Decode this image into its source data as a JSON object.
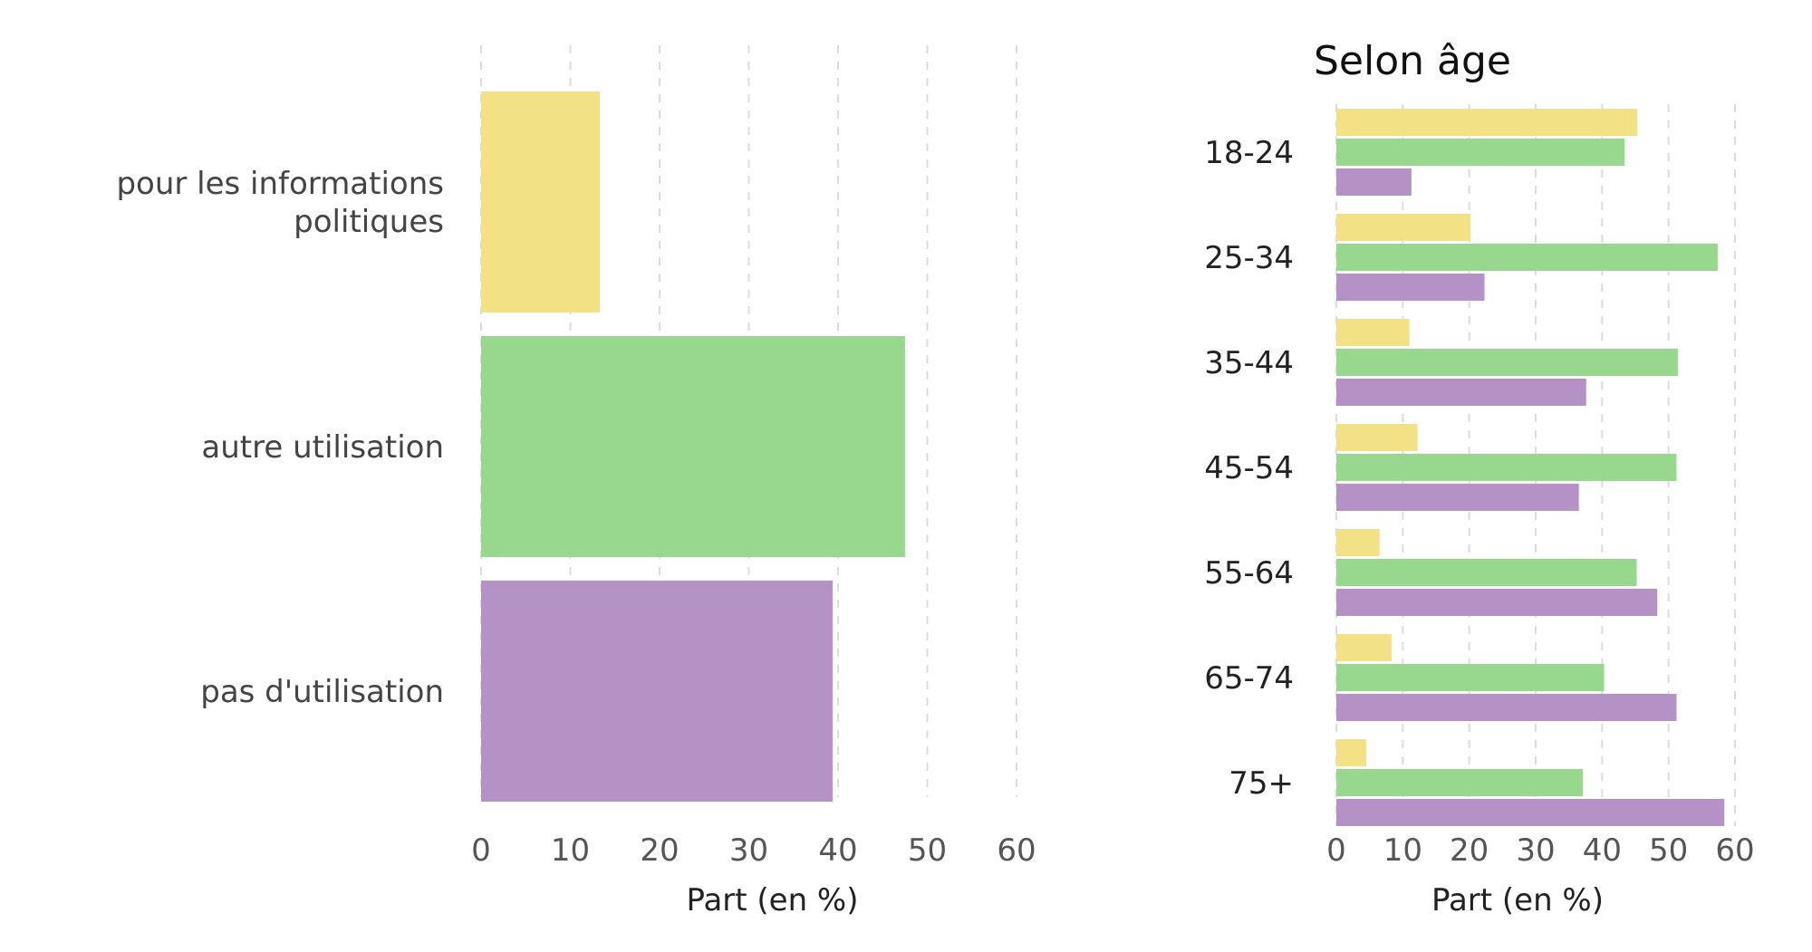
{
  "colors": {
    "pour les informations politiques": "#f2e185",
    "autre utilisation": "#98d78e",
    "pas d'utilisation": "#b592c5",
    "grid": "#dcdcdc"
  },
  "chart_data": [
    {
      "type": "bar",
      "orientation": "horizontal",
      "categories": [
        "pour les informations politiques",
        "autre utilisation",
        "pas d'utilisation"
      ],
      "category_label_lines": [
        [
          "pour les informations",
          "politiques"
        ],
        [
          "autre utilisation"
        ],
        [
          "pas d'utilisation"
        ]
      ],
      "values": [
        13.3,
        47.5,
        39.4
      ],
      "title": "",
      "xlabel": "Part (en %)",
      "ylabel": "",
      "xlim": [
        0,
        60
      ],
      "xticks": [
        0,
        10,
        20,
        30,
        40,
        50,
        60
      ],
      "grid": "vertical dashed",
      "legend": "none"
    },
    {
      "type": "bar",
      "orientation": "horizontal",
      "title": "Selon âge",
      "categories": [
        "18-24",
        "25-34",
        "35-44",
        "45-54",
        "55-64",
        "65-74",
        "75+"
      ],
      "series": [
        {
          "key": "pour les informations politiques",
          "values": [
            45.3,
            20.2,
            11.0,
            12.2,
            6.5,
            8.3,
            4.5
          ]
        },
        {
          "key": "autre utilisation",
          "values": [
            43.4,
            57.4,
            51.4,
            51.2,
            45.2,
            40.3,
            37.1
          ]
        },
        {
          "key": "pas d'utilisation",
          "values": [
            11.3,
            22.3,
            37.6,
            36.5,
            48.3,
            51.2,
            58.4
          ]
        }
      ],
      "xlabel": "Part (en %)",
      "ylabel": "",
      "xlim": [
        0,
        60
      ],
      "xticks": [
        0,
        10,
        20,
        30,
        40,
        50,
        60
      ],
      "grid": "vertical dashed",
      "legend": "none"
    }
  ]
}
